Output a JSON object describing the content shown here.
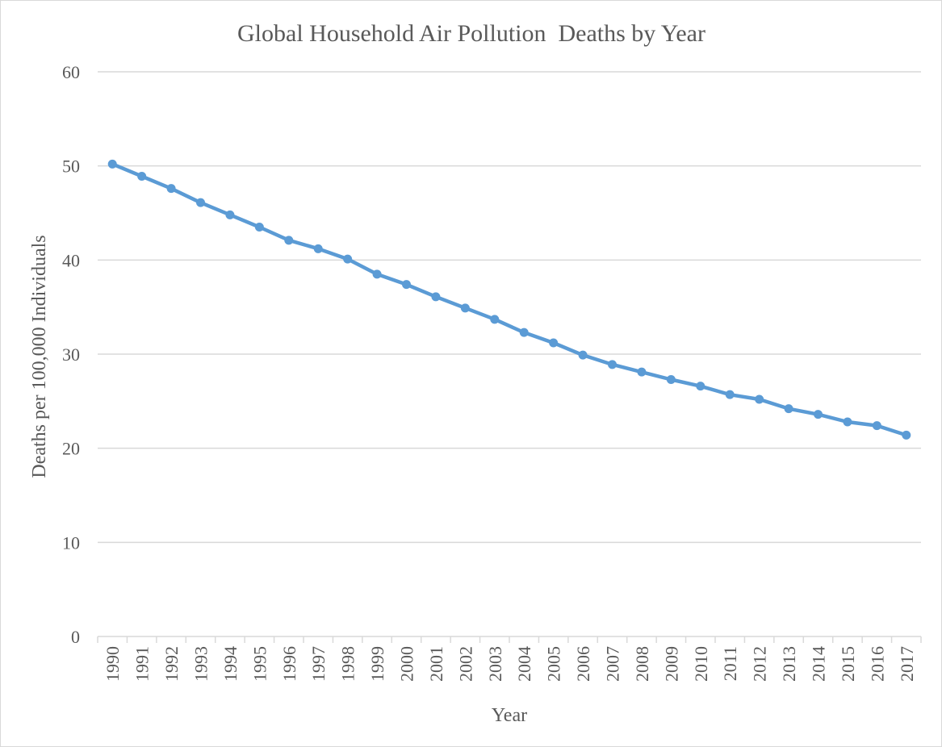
{
  "chart_data": {
    "type": "line",
    "title": "Global Household Air Pollution  Deaths by Year",
    "xlabel": "Year",
    "ylabel": "Deaths per 100,000 Individuals",
    "ylim": [
      0,
      60
    ],
    "yticks": [
      0,
      10,
      20,
      30,
      40,
      50,
      60
    ],
    "grid": true,
    "legend": "none",
    "categories": [
      "1990",
      "1991",
      "1992",
      "1993",
      "1994",
      "1995",
      "1996",
      "1997",
      "1998",
      "1999",
      "2000",
      "2001",
      "2002",
      "2003",
      "2004",
      "2005",
      "2006",
      "2007",
      "2008",
      "2009",
      "2010",
      "2011",
      "2012",
      "2013",
      "2014",
      "2015",
      "2016",
      "2017"
    ],
    "series": [
      {
        "values": [
          50.2,
          48.9,
          47.6,
          46.1,
          44.8,
          43.5,
          42.1,
          41.2,
          40.1,
          38.5,
          37.4,
          36.1,
          34.9,
          33.7,
          32.3,
          31.2,
          29.9,
          28.9,
          28.1,
          27.3,
          26.6,
          25.7,
          25.2,
          24.2,
          23.6,
          22.8,
          22.4,
          21.4
        ]
      }
    ],
    "colors": {
      "series": "#5b9bd5",
      "grid": "#d9d9d9",
      "text": "#595959"
    }
  }
}
